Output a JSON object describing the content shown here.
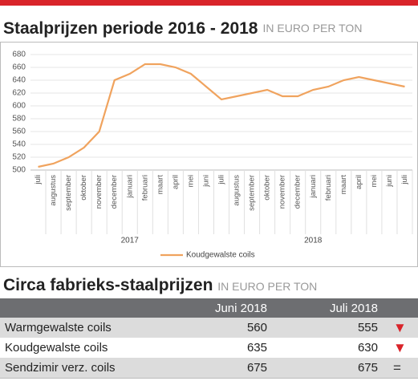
{
  "chart_data": {
    "type": "line",
    "title": "Staalprijzen periode 2016 - 2018",
    "subtitle": "IN EURO PER TON",
    "categories": [
      "juli",
      "augustus",
      "september",
      "oktober",
      "november",
      "december",
      "januari",
      "februari",
      "maart",
      "april",
      "mei",
      "juni",
      "juli",
      "augustus",
      "september",
      "oktober",
      "november",
      "december",
      "januari",
      "februari",
      "maart",
      "april",
      "mei",
      "juni",
      "juli"
    ],
    "year_labels": [
      "2017",
      "2018"
    ],
    "series": [
      {
        "name": "Koudgewalste coils",
        "color": "#f0a35e",
        "values": [
          505,
          510,
          520,
          535,
          560,
          640,
          650,
          665,
          665,
          660,
          650,
          630,
          610,
          615,
          620,
          625,
          615,
          615,
          625,
          630,
          640,
          645,
          640,
          635,
          630
        ]
      }
    ],
    "ylim": [
      500,
      680
    ],
    "yticks": [
      500,
      520,
      540,
      560,
      580,
      600,
      620,
      640,
      660,
      680
    ],
    "grid": true
  },
  "table": {
    "title": "Circa fabrieks-staalprijzen",
    "subtitle": "IN EURO PER TON",
    "header": [
      "Juni 2018",
      "Juli 2018"
    ],
    "rows": [
      [
        "Warmgewalste coils",
        "560",
        "555",
        "▼"
      ],
      [
        "Koudgewalste coils",
        "635",
        "630",
        "▼"
      ],
      [
        "Sendzimir verz. coils",
        "675",
        "675",
        "="
      ]
    ]
  }
}
